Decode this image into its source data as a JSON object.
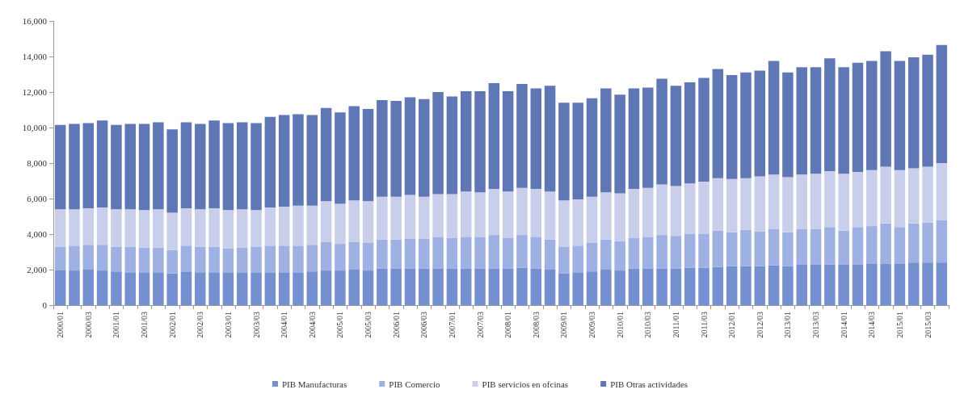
{
  "chart_data": {
    "type": "bar",
    "stacked": true,
    "legend": "bottom",
    "grid": false,
    "categories": [
      "2000/01",
      null,
      "2000/03",
      null,
      "2001/01",
      null,
      "2001/03",
      null,
      "2002/01",
      null,
      "2002/03",
      null,
      "2003/01",
      null,
      "2003/03",
      null,
      "2004/01",
      null,
      "2004/03",
      null,
      "2005/01",
      null,
      "2005/03",
      null,
      "2006/01",
      null,
      "2006/03",
      null,
      "2007/01",
      null,
      "2007/03",
      null,
      "2008/01",
      null,
      "2008/03",
      null,
      "2009/01",
      null,
      "2009/03",
      null,
      "2010/01",
      null,
      "2010/03",
      null,
      "2011/01",
      null,
      "2011/03",
      null,
      "2012/01",
      null,
      "2012/03",
      null,
      "2013/01",
      null,
      "2013/03",
      null,
      "2014/01",
      null,
      "2014/03",
      null,
      "2015/01",
      null,
      "2015/03",
      null
    ],
    "ylim": [
      0,
      16000
    ],
    "yticks": [
      {
        "value": 0,
        "label": "0"
      },
      {
        "value": 2000,
        "label": "2,000"
      },
      {
        "value": 4000,
        "label": "4,000"
      },
      {
        "value": 6000,
        "label": "6,000"
      },
      {
        "value": 8000,
        "label": "8,000"
      },
      {
        "value": 10000,
        "label": "10,000"
      },
      {
        "value": 12000,
        "label": "12,000"
      },
      {
        "value": 14000,
        "label": "14,000"
      },
      {
        "value": 16000,
        "label": "16,000"
      }
    ],
    "series": [
      {
        "name": "PIB Manufacturas",
        "color": "#7590d0",
        "values": [
          1950,
          1950,
          2000,
          1950,
          1900,
          1850,
          1850,
          1850,
          1800,
          1900,
          1850,
          1850,
          1850,
          1850,
          1850,
          1850,
          1850,
          1850,
          1900,
          1950,
          1950,
          2000,
          1950,
          2050,
          2050,
          2050,
          2050,
          2050,
          2050,
          2050,
          2050,
          2050,
          2050,
          2100,
          2050,
          2000,
          1800,
          1850,
          1900,
          2000,
          1950,
          2050,
          2050,
          2050,
          2050,
          2100,
          2100,
          2150,
          2200,
          2200,
          2200,
          2250,
          2200,
          2300,
          2300,
          2300,
          2300,
          2300,
          2350,
          2350,
          2350,
          2400,
          2400,
          2400
        ]
      },
      {
        "name": "PIB Comercio",
        "color": "#9fb1e2",
        "values": [
          1350,
          1400,
          1400,
          1450,
          1400,
          1450,
          1400,
          1400,
          1300,
          1450,
          1450,
          1450,
          1350,
          1400,
          1450,
          1500,
          1500,
          1500,
          1500,
          1600,
          1500,
          1550,
          1550,
          1650,
          1650,
          1700,
          1700,
          1800,
          1750,
          1800,
          1800,
          1900,
          1750,
          1850,
          1800,
          1700,
          1500,
          1500,
          1600,
          1700,
          1650,
          1750,
          1800,
          1900,
          1850,
          1900,
          1900,
          2050,
          1900,
          2050,
          1950,
          2050,
          1900,
          2000,
          2000,
          2100,
          1900,
          2100,
          2100,
          2250,
          2050,
          2200,
          2250,
          2400
        ]
      },
      {
        "name": "PIB servicios en ofcinas",
        "color": "#c9cfeb",
        "values": [
          2100,
          2050,
          2050,
          2100,
          2100,
          2100,
          2100,
          2150,
          2100,
          2100,
          2100,
          2150,
          2150,
          2150,
          2050,
          2150,
          2200,
          2250,
          2200,
          2300,
          2250,
          2350,
          2350,
          2400,
          2400,
          2450,
          2350,
          2400,
          2450,
          2550,
          2500,
          2600,
          2600,
          2650,
          2700,
          2700,
          2600,
          2600,
          2600,
          2650,
          2700,
          2750,
          2750,
          2850,
          2800,
          2850,
          2950,
          2950,
          3000,
          2900,
          3100,
          3050,
          3100,
          3050,
          3100,
          3150,
          3200,
          3100,
          3150,
          3200,
          3200,
          3100,
          3150,
          3200
        ]
      },
      {
        "name": "PIB Otras actividades",
        "color": "#6077b6",
        "values": [
          4750,
          4800,
          4800,
          4900,
          4750,
          4800,
          4850,
          4900,
          4700,
          4850,
          4800,
          4950,
          4900,
          4900,
          4900,
          5100,
          5150,
          5150,
          5100,
          5250,
          5150,
          5300,
          5200,
          5450,
          5400,
          5500,
          5500,
          5750,
          5500,
          5650,
          5700,
          5950,
          5650,
          5850,
          5650,
          5950,
          5500,
          5450,
          5550,
          5850,
          5550,
          5650,
          5650,
          5950,
          5650,
          5700,
          5850,
          6150,
          5850,
          5950,
          5950,
          6400,
          5900,
          6050,
          6000,
          6350,
          6000,
          6150,
          6150,
          6500,
          6150,
          6250,
          6300,
          6650
        ]
      }
    ]
  }
}
